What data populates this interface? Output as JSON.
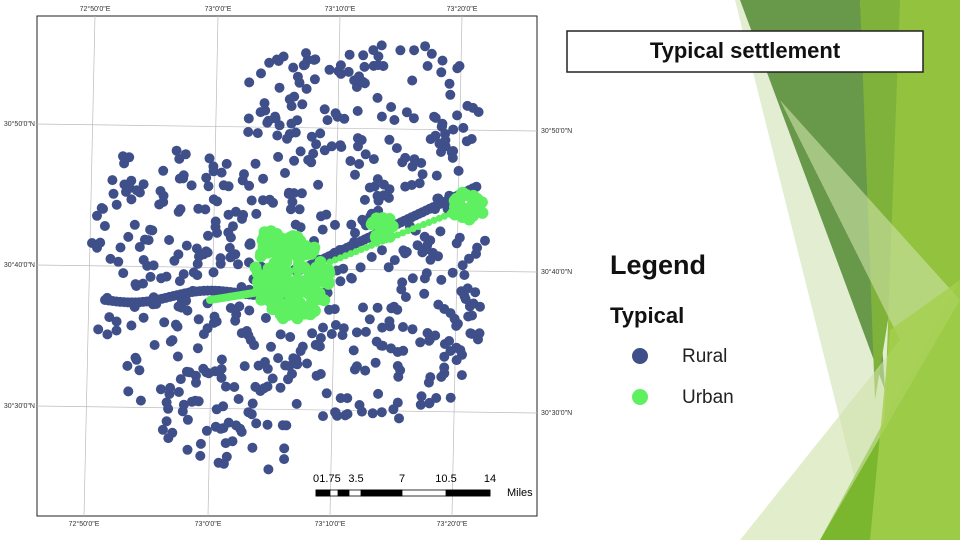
{
  "header": {
    "title": "Typical settlement"
  },
  "map": {
    "graticule": {
      "top": [
        "72°50'0\"E",
        "73°0'0\"E",
        "73°10'0\"E",
        "73°20'0\"E"
      ],
      "bottom": [
        "72°50'0\"E",
        "73°0'0\"E",
        "73°10'0\"E",
        "73°20'0\"E"
      ],
      "left": [
        "30°50'0\"N",
        "30°40'0\"N",
        "30°30'0\"N"
      ],
      "right": [
        "30°50'0\"N",
        "30°40'0\"N",
        "30°30'0\"N"
      ]
    },
    "scale": {
      "labels": [
        "0",
        "1.75",
        "3.5",
        "7",
        "10.5",
        "14"
      ],
      "unit": "Miles"
    }
  },
  "legend": {
    "title": "Legend",
    "group": "Typical",
    "items": [
      "Rural",
      "Urban"
    ]
  }
}
